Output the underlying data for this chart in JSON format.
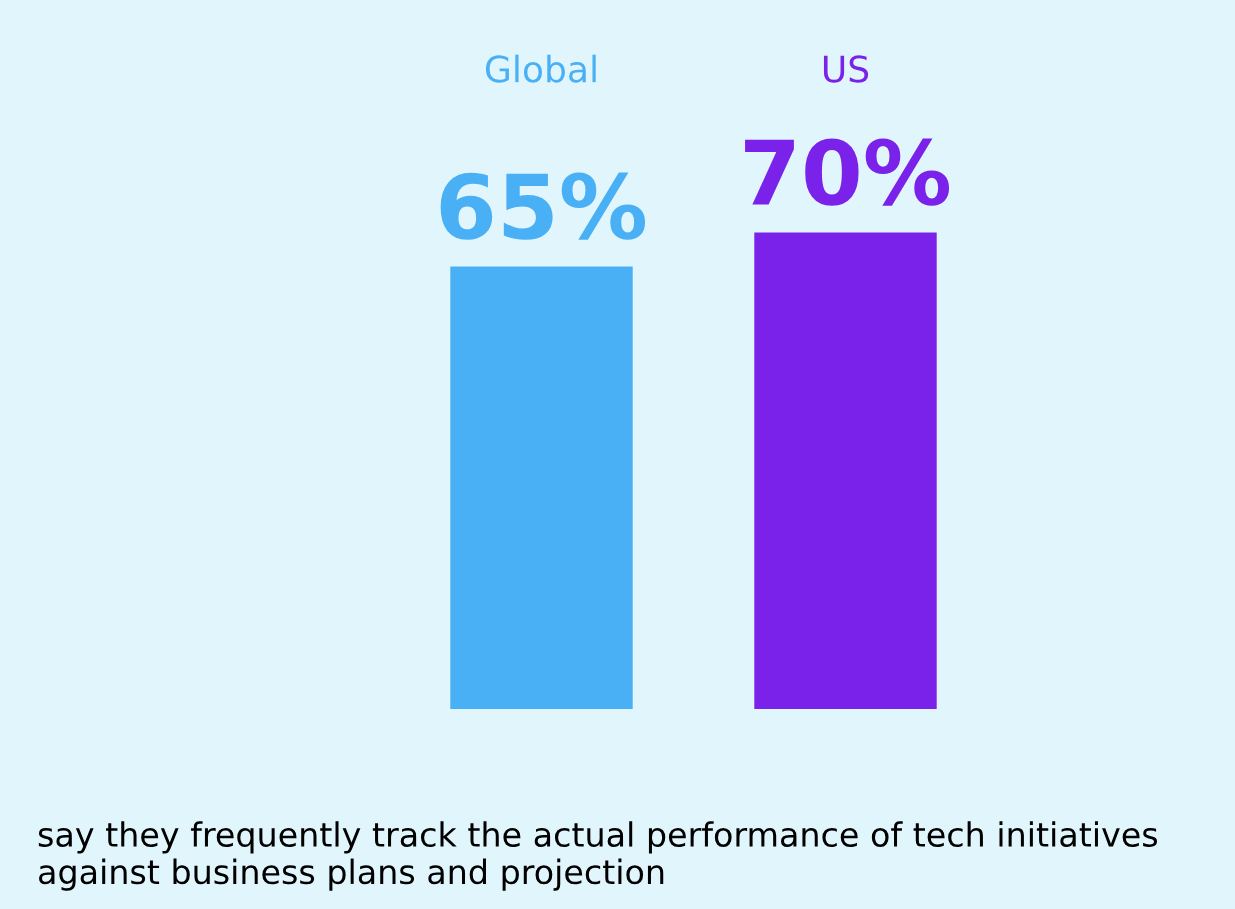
{
  "chart_data": {
    "type": "bar",
    "categories": [
      "Global",
      "US"
    ],
    "values": [
      65,
      70
    ],
    "colors": [
      "#4ab0f5",
      "#7b22ea"
    ],
    "value_labels": [
      "65%",
      "70%"
    ],
    "annotations": [
      "say they frequently track the actual performance of tech initiatives against business plans and projection"
    ]
  }
}
